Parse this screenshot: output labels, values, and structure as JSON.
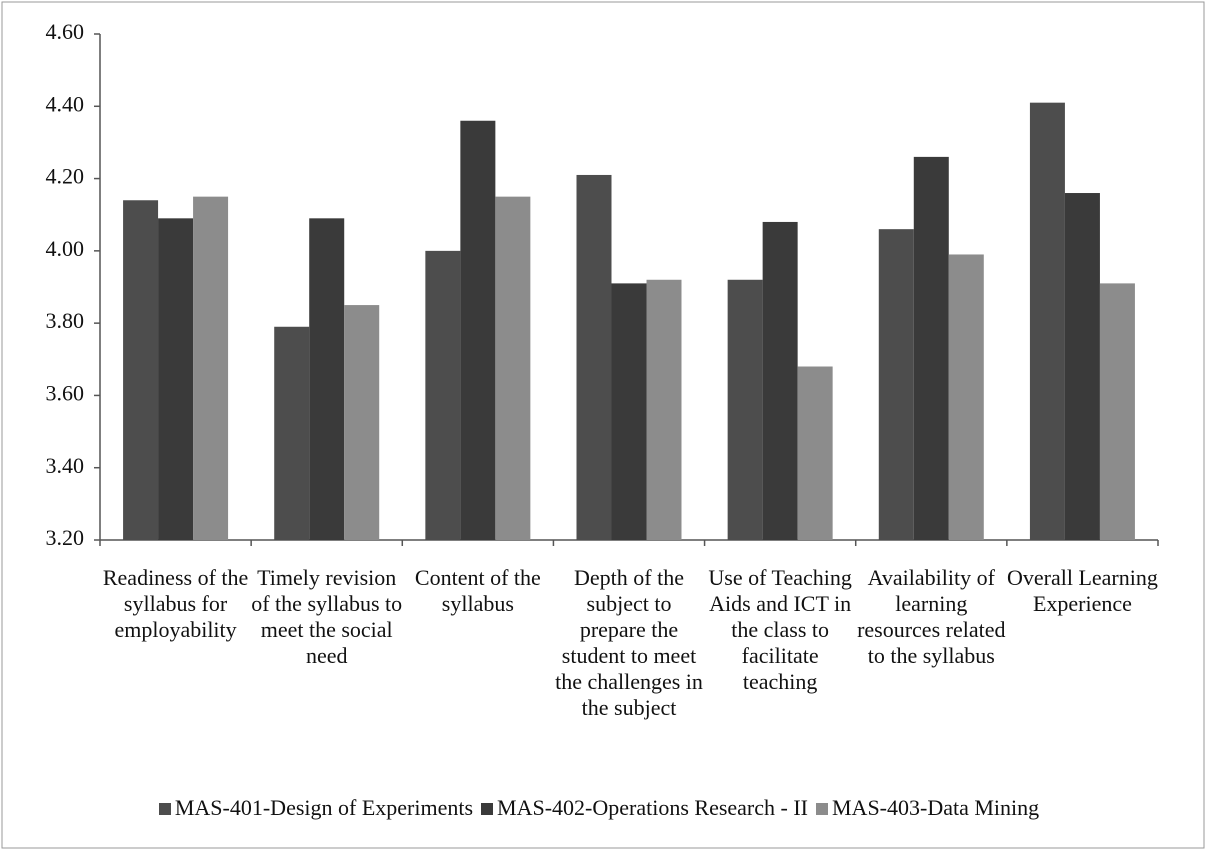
{
  "chart_data": {
    "type": "bar",
    "categories": [
      "Readiness of the syllabus for employability",
      "Timely revision of the syllabus to meet the social need",
      "Content of the syllabus",
      "Depth of the subject to prepare the student to meet the challenges in the subject",
      "Use of Teaching Aids and ICT in the class to facilitate teaching",
      "Availability of learning resources related to the syllabus",
      "Overall Learning Experience"
    ],
    "series": [
      {
        "name": "MAS-401-Design of Experiments",
        "color": "#4d4d4d",
        "values": [
          4.14,
          3.79,
          4.0,
          4.21,
          3.92,
          4.06,
          4.41
        ]
      },
      {
        "name": "MAS-402-Operations Research - II",
        "color": "#3a3a3a",
        "values": [
          4.09,
          4.09,
          4.36,
          3.91,
          4.08,
          4.26,
          4.16
        ]
      },
      {
        "name": "MAS-403-Data Mining",
        "color": "#8c8c8c",
        "values": [
          4.15,
          3.85,
          4.15,
          3.92,
          3.68,
          3.99,
          3.91
        ]
      }
    ],
    "ylim": [
      3.2,
      4.6
    ],
    "yticks": [
      {
        "value": 3.2,
        "label": "3.20"
      },
      {
        "value": 3.4,
        "label": "3.40"
      },
      {
        "value": 3.6,
        "label": "3.60"
      },
      {
        "value": 3.8,
        "label": "3.80"
      },
      {
        "value": 4.0,
        "label": "4.00"
      },
      {
        "value": 4.2,
        "label": "4.20"
      },
      {
        "value": 4.4,
        "label": "4.40"
      },
      {
        "value": 4.6,
        "label": "4.60"
      }
    ],
    "legend": "bottom"
  }
}
